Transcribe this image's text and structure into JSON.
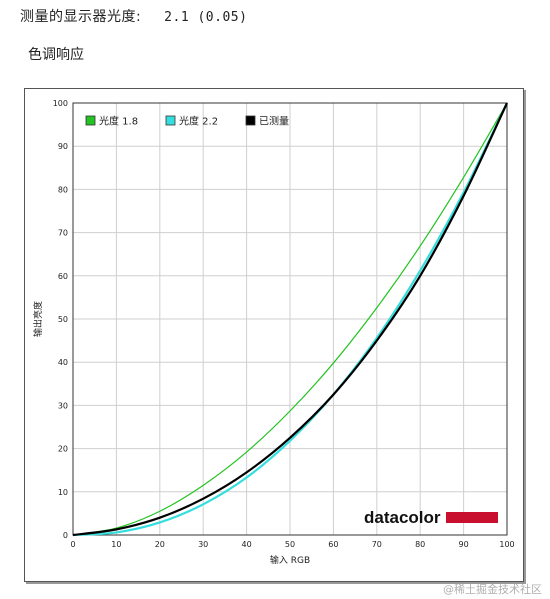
{
  "header": {
    "measured_label": "测量的显示器光度:",
    "measured_value": "2.1 (0.05)",
    "section_title": "色调响应"
  },
  "watermark": "@稀土掘金技术社区",
  "logo": {
    "text": "datacolor",
    "bar_color": "#c8102e"
  },
  "chart_data": {
    "type": "line",
    "xlabel": "输入 RGB",
    "ylabel": "输出亮度",
    "xlim": [
      0,
      100
    ],
    "ylim": [
      0,
      100
    ],
    "xticks": [
      0,
      10,
      20,
      30,
      40,
      50,
      60,
      70,
      80,
      90,
      100
    ],
    "yticks": [
      0,
      10,
      20,
      30,
      40,
      50,
      60,
      70,
      80,
      90,
      100
    ],
    "grid": true,
    "legend_position": "top-left",
    "series": [
      {
        "name": "光度 1.8",
        "color": "#22c322",
        "x": [
          0,
          10,
          20,
          30,
          40,
          50,
          60,
          70,
          80,
          90,
          100
        ],
        "y": [
          0,
          1.6,
          5.5,
          11.5,
          19.2,
          28.7,
          39.8,
          52.6,
          66.9,
          82.8,
          100
        ]
      },
      {
        "name": "光度 2.2",
        "color": "#35dede",
        "x": [
          0,
          10,
          20,
          30,
          40,
          50,
          60,
          70,
          80,
          90,
          100
        ],
        "y": [
          0,
          0.6,
          2.9,
          7.1,
          13.3,
          21.8,
          32.5,
          45.6,
          61.2,
          79.3,
          100
        ]
      },
      {
        "name": "已测量",
        "color": "#000000",
        "x": [
          0,
          10,
          20,
          30,
          40,
          50,
          60,
          70,
          80,
          90,
          100
        ],
        "y": [
          0,
          1.3,
          4.0,
          8.4,
          14.5,
          22.5,
          32.5,
          45.0,
          60.0,
          78.5,
          100
        ]
      }
    ]
  }
}
